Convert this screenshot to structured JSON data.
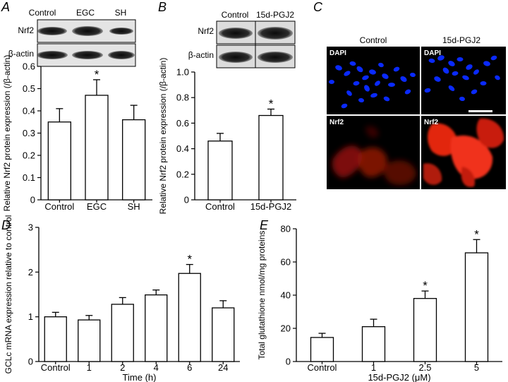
{
  "panels": {
    "A": {
      "label": "A",
      "blot": {
        "lanes": [
          "Control",
          "EGC",
          "SH"
        ],
        "rows": [
          "Nrf2",
          "β-actin"
        ]
      }
    },
    "B": {
      "label": "B",
      "blot": {
        "lanes": [
          "Control",
          "15d-PGJ2"
        ],
        "rows": [
          "Nrf2",
          "β-actin"
        ]
      }
    },
    "C": {
      "label": "C",
      "columns": [
        "Control",
        "15d-PGJ2"
      ],
      "row_labels": [
        "DAPI",
        "DAPI",
        "Nrf2",
        "Nrf2"
      ]
    },
    "D": {
      "label": "D"
    },
    "E": {
      "label": "E"
    }
  },
  "colors": {
    "dapi": "#0a2aff",
    "nrf2": "#ff2a10",
    "bar_fill": "#ffffff",
    "axis": "#000000"
  },
  "chart_data": [
    {
      "id": "A",
      "type": "bar",
      "categories": [
        "Control",
        "EGC",
        "SH"
      ],
      "values": [
        0.35,
        0.47,
        0.36
      ],
      "errors": [
        0.06,
        0.07,
        0.065
      ],
      "significant": [
        false,
        true,
        false
      ],
      "ylabel": "Relative Nrf2 protein expression (/β-actin)",
      "xlabel": "",
      "ylim": [
        0,
        0.6
      ],
      "yticks": [
        "0",
        "0.1",
        "0.2",
        "0.3",
        "0.4",
        "0.5",
        "0.6"
      ],
      "star": "*"
    },
    {
      "id": "B",
      "type": "bar",
      "categories": [
        "Control",
        "15d-PGJ2"
      ],
      "values": [
        0.46,
        0.66
      ],
      "errors": [
        0.06,
        0.05
      ],
      "significant": [
        false,
        true
      ],
      "ylabel": "Relative Nrf2 protein expression (/β-actin)",
      "xlabel": "",
      "ylim": [
        0,
        1.0
      ],
      "yticks": [
        "0",
        "0.2",
        "0.4",
        "0.6",
        "0.8",
        "1.0"
      ],
      "star": "*"
    },
    {
      "id": "D",
      "type": "bar",
      "categories": [
        "Control",
        "1",
        "2",
        "4",
        "6",
        "24"
      ],
      "values": [
        1.0,
        0.93,
        1.28,
        1.49,
        1.97,
        1.2
      ],
      "errors": [
        0.1,
        0.1,
        0.15,
        0.11,
        0.2,
        0.16
      ],
      "significant": [
        false,
        false,
        false,
        false,
        true,
        false
      ],
      "ylabel": "GCLc mRNA expression relative to control",
      "xlabel": "Time (h)",
      "ylim": [
        0,
        3
      ],
      "yticks": [
        "0",
        "1",
        "2",
        "3"
      ],
      "star": "*"
    },
    {
      "id": "E",
      "type": "bar",
      "categories": [
        "Control",
        "1",
        "2.5",
        "5"
      ],
      "values": [
        14.5,
        21,
        38,
        65.5
      ],
      "errors": [
        2.5,
        4.5,
        4.5,
        8
      ],
      "significant": [
        false,
        false,
        true,
        true
      ],
      "ylabel": "Total glutathione nmol/mg proteins",
      "xlabel": "15d-PGJ2 (μM)",
      "ylim": [
        0,
        80
      ],
      "yticks": [
        "0",
        "20",
        "40",
        "60",
        "80"
      ],
      "star": "*"
    }
  ]
}
